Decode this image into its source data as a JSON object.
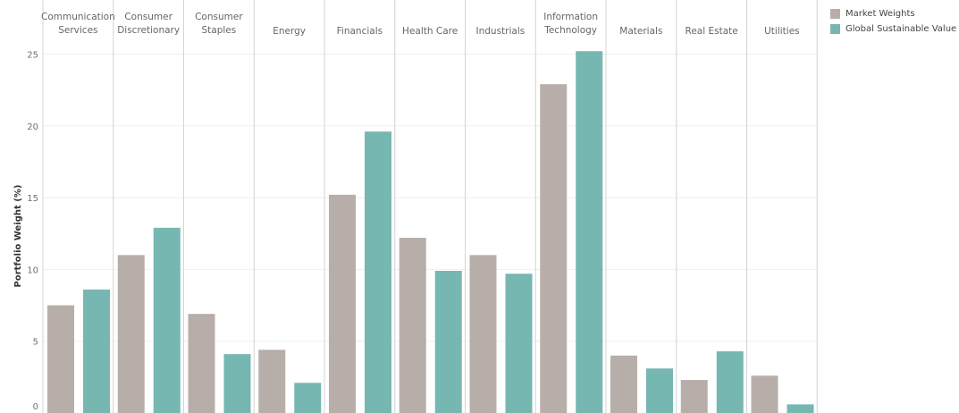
{
  "chart_data": {
    "type": "bar",
    "categories": [
      [
        "Communication",
        "Services"
      ],
      [
        "Consumer",
        "Discretionary"
      ],
      [
        "Consumer",
        "Staples"
      ],
      [
        "Energy"
      ],
      [
        "Financials"
      ],
      [
        "Health Care"
      ],
      [
        "Industrials"
      ],
      [
        "Information",
        "Technology"
      ],
      [
        "Materials"
      ],
      [
        "Real Estate"
      ],
      [
        "Utilities"
      ]
    ],
    "series": [
      {
        "name": "Market Weights",
        "color": "#b8aea9",
        "values": [
          7.5,
          11.0,
          6.9,
          4.4,
          15.2,
          12.2,
          11.0,
          22.9,
          4.0,
          2.3,
          2.6
        ]
      },
      {
        "name": "Global Sustainable Value",
        "color": "#76b7b2",
        "values": [
          8.6,
          12.9,
          4.1,
          2.1,
          19.6,
          9.9,
          9.7,
          25.2,
          3.1,
          4.3,
          0.6
        ]
      }
    ],
    "ylabel": "Portfolio Weight (%)",
    "ylim": [
      0,
      25.9
    ],
    "yticks": [
      "0",
      "5",
      "10",
      "15",
      "20",
      "25"
    ],
    "grid": true,
    "legend_position": "top-right"
  }
}
